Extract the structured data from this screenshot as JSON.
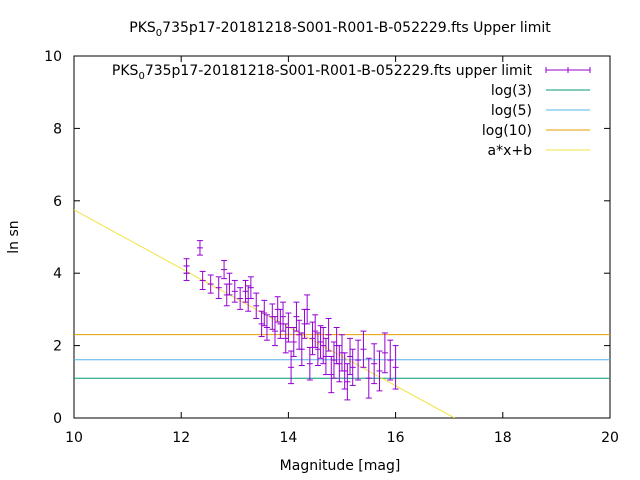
{
  "chart_data": {
    "type": "scatter",
    "title_main": "PKS",
    "title_sub": "0",
    "title_rest": "735p17-20181218-S001-R001-B-052229.fts Upper limit",
    "xlabel": "Magnitude [mag]",
    "ylabel": "ln sn",
    "xlim": [
      10,
      20
    ],
    "ylim": [
      0,
      10
    ],
    "xticks": [
      10,
      12,
      14,
      16,
      18,
      20
    ],
    "yticks": [
      0,
      2,
      4,
      6,
      8,
      10
    ],
    "grid": false,
    "legend_position": "top-right",
    "series": [
      {
        "name_main": "PKS",
        "name_sub": "0",
        "name_rest": "735p17-20181218-S001-R001-B-052229.fts upper limit",
        "kind": "errorbars",
        "color": "#9400d3",
        "points": [
          [
            12.1,
            4.0,
            0.2
          ],
          [
            12.1,
            4.2,
            0.2
          ],
          [
            12.35,
            4.7,
            0.2
          ],
          [
            12.4,
            3.8,
            0.25
          ],
          [
            12.55,
            3.7,
            0.25
          ],
          [
            12.7,
            3.6,
            0.3
          ],
          [
            12.8,
            4.1,
            0.25
          ],
          [
            12.85,
            3.4,
            0.3
          ],
          [
            12.9,
            3.7,
            0.3
          ],
          [
            13.0,
            3.5,
            0.3
          ],
          [
            13.1,
            3.3,
            0.3
          ],
          [
            13.2,
            3.5,
            0.3
          ],
          [
            13.25,
            3.3,
            0.35
          ],
          [
            13.3,
            3.6,
            0.3
          ],
          [
            13.4,
            3.1,
            0.35
          ],
          [
            13.5,
            2.6,
            0.35
          ],
          [
            13.55,
            2.9,
            0.35
          ],
          [
            13.6,
            2.5,
            0.35
          ],
          [
            13.7,
            2.8,
            0.35
          ],
          [
            13.75,
            2.4,
            0.4
          ],
          [
            13.8,
            3.0,
            0.35
          ],
          [
            13.85,
            2.6,
            0.4
          ],
          [
            13.9,
            2.8,
            0.4
          ],
          [
            13.95,
            2.2,
            0.4
          ],
          [
            14.0,
            2.5,
            0.4
          ],
          [
            14.05,
            1.4,
            0.45
          ],
          [
            14.1,
            2.1,
            0.4
          ],
          [
            14.15,
            2.8,
            0.4
          ],
          [
            14.2,
            2.3,
            0.4
          ],
          [
            14.25,
            1.9,
            0.45
          ],
          [
            14.3,
            2.6,
            0.4
          ],
          [
            14.35,
            3.0,
            0.4
          ],
          [
            14.4,
            1.5,
            0.45
          ],
          [
            14.45,
            2.2,
            0.45
          ],
          [
            14.5,
            2.4,
            0.45
          ],
          [
            14.55,
            1.9,
            0.45
          ],
          [
            14.6,
            2.1,
            0.45
          ],
          [
            14.65,
            2.0,
            0.5
          ],
          [
            14.7,
            1.7,
            0.5
          ],
          [
            14.75,
            2.3,
            0.45
          ],
          [
            14.8,
            1.2,
            0.5
          ],
          [
            14.85,
            1.6,
            0.5
          ],
          [
            14.9,
            2.0,
            0.5
          ],
          [
            14.95,
            1.5,
            0.5
          ],
          [
            15.0,
            1.8,
            0.5
          ],
          [
            15.05,
            1.3,
            0.5
          ],
          [
            15.1,
            1.0,
            0.5
          ],
          [
            15.15,
            1.7,
            0.5
          ],
          [
            15.2,
            1.4,
            0.5
          ],
          [
            15.3,
            1.6,
            0.55
          ],
          [
            15.4,
            1.9,
            0.5
          ],
          [
            15.5,
            1.1,
            0.55
          ],
          [
            15.6,
            1.5,
            0.55
          ],
          [
            15.7,
            1.3,
            0.55
          ],
          [
            15.8,
            1.8,
            0.55
          ],
          [
            15.9,
            1.6,
            0.55
          ],
          [
            16.0,
            1.4,
            0.6
          ]
        ]
      },
      {
        "name": "log(3)",
        "kind": "hline",
        "y": 1.0986,
        "color": "#009e73"
      },
      {
        "name": "log(5)",
        "kind": "hline",
        "y": 1.6094,
        "color": "#56b4e9"
      },
      {
        "name": "log(10)",
        "kind": "hline",
        "y": 2.3026,
        "color": "#e69f00"
      },
      {
        "name": "a*x+b",
        "kind": "line",
        "color": "#f0e442",
        "points": [
          [
            10,
            5.75
          ],
          [
            17.1,
            0
          ]
        ]
      }
    ]
  }
}
